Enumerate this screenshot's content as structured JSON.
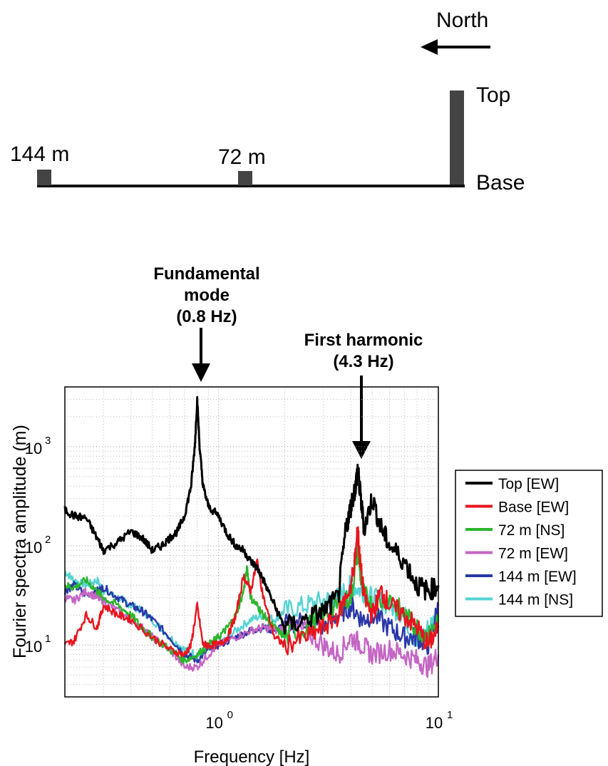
{
  "diagram": {
    "north_label": "North",
    "top_label": "Top",
    "base_label": "Base",
    "station_144": "144 m",
    "station_72": "72 m"
  },
  "annotations": {
    "fundamental": [
      "Fundamental",
      "mode",
      "(0.8 Hz)"
    ],
    "harmonic": [
      "First harmonic",
      "(4.3 Hz)"
    ]
  },
  "colors": {
    "top_ew": "#000000",
    "base_ew": "#e8141e",
    "m72_ns": "#2db52d",
    "m72_ew": "#c466c4",
    "m144_ew": "#2a37a8",
    "m144_ns": "#55d3d3"
  },
  "chart_data": {
    "type": "line",
    "xscale": "log",
    "yscale": "log",
    "xlim": [
      0.2,
      10
    ],
    "ylim": [
      3,
      4000
    ],
    "xlabel": "Frequency [Hz]",
    "ylabel": "Fourier spectra amplitude  (m)",
    "xticks": [
      {
        "base": "10",
        "exp": "0",
        "value": 1
      },
      {
        "base": "10",
        "exp": "1",
        "value": 10
      }
    ],
    "yticks": [
      {
        "base": "10",
        "exp": "1",
        "value": 10
      },
      {
        "base": "10",
        "exp": "2",
        "value": 100
      },
      {
        "base": "10",
        "exp": "3",
        "value": 1000
      }
    ],
    "grid": true,
    "legend_position": "right",
    "series": [
      {
        "name": "Top [EW]",
        "color": "#000000",
        "x": [
          0.2,
          0.22,
          0.25,
          0.28,
          0.3,
          0.35,
          0.4,
          0.45,
          0.5,
          0.55,
          0.6,
          0.65,
          0.7,
          0.75,
          0.78,
          0.8,
          0.82,
          0.85,
          0.9,
          1.0,
          1.1,
          1.2,
          1.3,
          1.4,
          1.5,
          1.6,
          1.8,
          2.0,
          2.5,
          3.0,
          3.5,
          3.8,
          4.0,
          4.2,
          4.3,
          4.4,
          4.6,
          5.0,
          5.5,
          6.0,
          7.0,
          8.0,
          9.0,
          10.0
        ],
        "y": [
          230,
          200,
          190,
          120,
          90,
          110,
          140,
          120,
          90,
          100,
          120,
          140,
          200,
          400,
          1000,
          3000,
          1000,
          400,
          250,
          200,
          130,
          100,
          90,
          70,
          60,
          45,
          25,
          15,
          18,
          22,
          30,
          150,
          250,
          400,
          600,
          350,
          150,
          300,
          150,
          100,
          70,
          40,
          35,
          40
        ]
      },
      {
        "name": "Base [EW]",
        "color": "#e8141e",
        "x": [
          0.2,
          0.22,
          0.25,
          0.28,
          0.3,
          0.35,
          0.4,
          0.5,
          0.6,
          0.7,
          0.75,
          0.8,
          0.85,
          0.9,
          1.0,
          1.1,
          1.2,
          1.3,
          1.4,
          1.5,
          1.6,
          1.8,
          2.0,
          2.5,
          3.0,
          3.5,
          4.0,
          4.2,
          4.3,
          4.4,
          4.6,
          5.0,
          5.5,
          6.0,
          7.0,
          8.0,
          9.0,
          10.0
        ],
        "y": [
          10,
          11,
          20,
          15,
          25,
          20,
          18,
          12,
          9,
          8,
          10,
          25,
          10,
          10,
          10,
          12,
          20,
          50,
          35,
          70,
          30,
          12,
          10,
          12,
          15,
          20,
          40,
          80,
          150,
          70,
          30,
          20,
          35,
          25,
          20,
          15,
          10,
          15
        ]
      },
      {
        "name": "72 m [NS]",
        "color": "#2db52d",
        "x": [
          0.2,
          0.22,
          0.25,
          0.28,
          0.3,
          0.35,
          0.4,
          0.45,
          0.5,
          0.6,
          0.7,
          0.8,
          0.9,
          1.0,
          1.1,
          1.2,
          1.3,
          1.35,
          1.4,
          1.5,
          1.6,
          1.8,
          2.0,
          2.5,
          3.0,
          3.5,
          4.0,
          4.3,
          4.5,
          5.0,
          6.0,
          7.0,
          8.0,
          9.0,
          10.0
        ],
        "y": [
          40,
          38,
          45,
          35,
          30,
          25,
          20,
          15,
          12,
          9,
          7,
          8,
          10,
          12,
          15,
          20,
          35,
          60,
          30,
          25,
          20,
          15,
          12,
          15,
          20,
          25,
          30,
          90,
          35,
          25,
          30,
          20,
          15,
          12,
          18
        ]
      },
      {
        "name": "72 m [EW]",
        "color": "#c466c4",
        "x": [
          0.2,
          0.22,
          0.25,
          0.28,
          0.3,
          0.35,
          0.4,
          0.45,
          0.5,
          0.6,
          0.7,
          0.8,
          0.9,
          1.0,
          1.2,
          1.4,
          1.6,
          1.8,
          2.0,
          2.5,
          3.0,
          3.5,
          4.0,
          4.5,
          5.0,
          6.0,
          7.0,
          8.0,
          9.0,
          10.0
        ],
        "y": [
          30,
          28,
          35,
          30,
          28,
          22,
          18,
          15,
          12,
          9,
          6,
          6,
          8,
          10,
          12,
          14,
          15,
          14,
          15,
          14,
          10,
          8,
          12,
          10,
          8,
          9,
          8,
          7,
          6,
          8
        ]
      },
      {
        "name": "144 m [EW]",
        "color": "#2a37a8",
        "x": [
          0.2,
          0.22,
          0.25,
          0.28,
          0.3,
          0.35,
          0.4,
          0.45,
          0.5,
          0.6,
          0.7,
          0.8,
          0.9,
          1.0,
          1.2,
          1.4,
          1.6,
          1.8,
          2.0,
          2.5,
          3.0,
          3.5,
          4.0,
          4.5,
          5.0,
          6.0,
          7.0,
          8.0,
          9.0,
          10.0
        ],
        "y": [
          35,
          40,
          32,
          35,
          38,
          30,
          25,
          22,
          18,
          12,
          8,
          7,
          9,
          10,
          12,
          14,
          15,
          14,
          16,
          18,
          15,
          20,
          25,
          18,
          20,
          15,
          12,
          12,
          10,
          25
        ]
      },
      {
        "name": "144 m [NS]",
        "color": "#55d3d3",
        "x": [
          0.2,
          0.22,
          0.25,
          0.28,
          0.3,
          0.35,
          0.4,
          0.45,
          0.5,
          0.6,
          0.7,
          0.8,
          0.9,
          1.0,
          1.2,
          1.4,
          1.6,
          1.8,
          2.0,
          2.5,
          3.0,
          3.5,
          4.0,
          4.5,
          5.0,
          6.0,
          7.0,
          8.0,
          9.0,
          10.0
        ],
        "y": [
          55,
          45,
          40,
          45,
          35,
          30,
          25,
          22,
          18,
          12,
          9,
          8,
          9,
          10,
          14,
          18,
          20,
          18,
          22,
          25,
          28,
          30,
          40,
          35,
          30,
          25,
          20,
          10,
          15,
          20
        ]
      }
    ]
  }
}
